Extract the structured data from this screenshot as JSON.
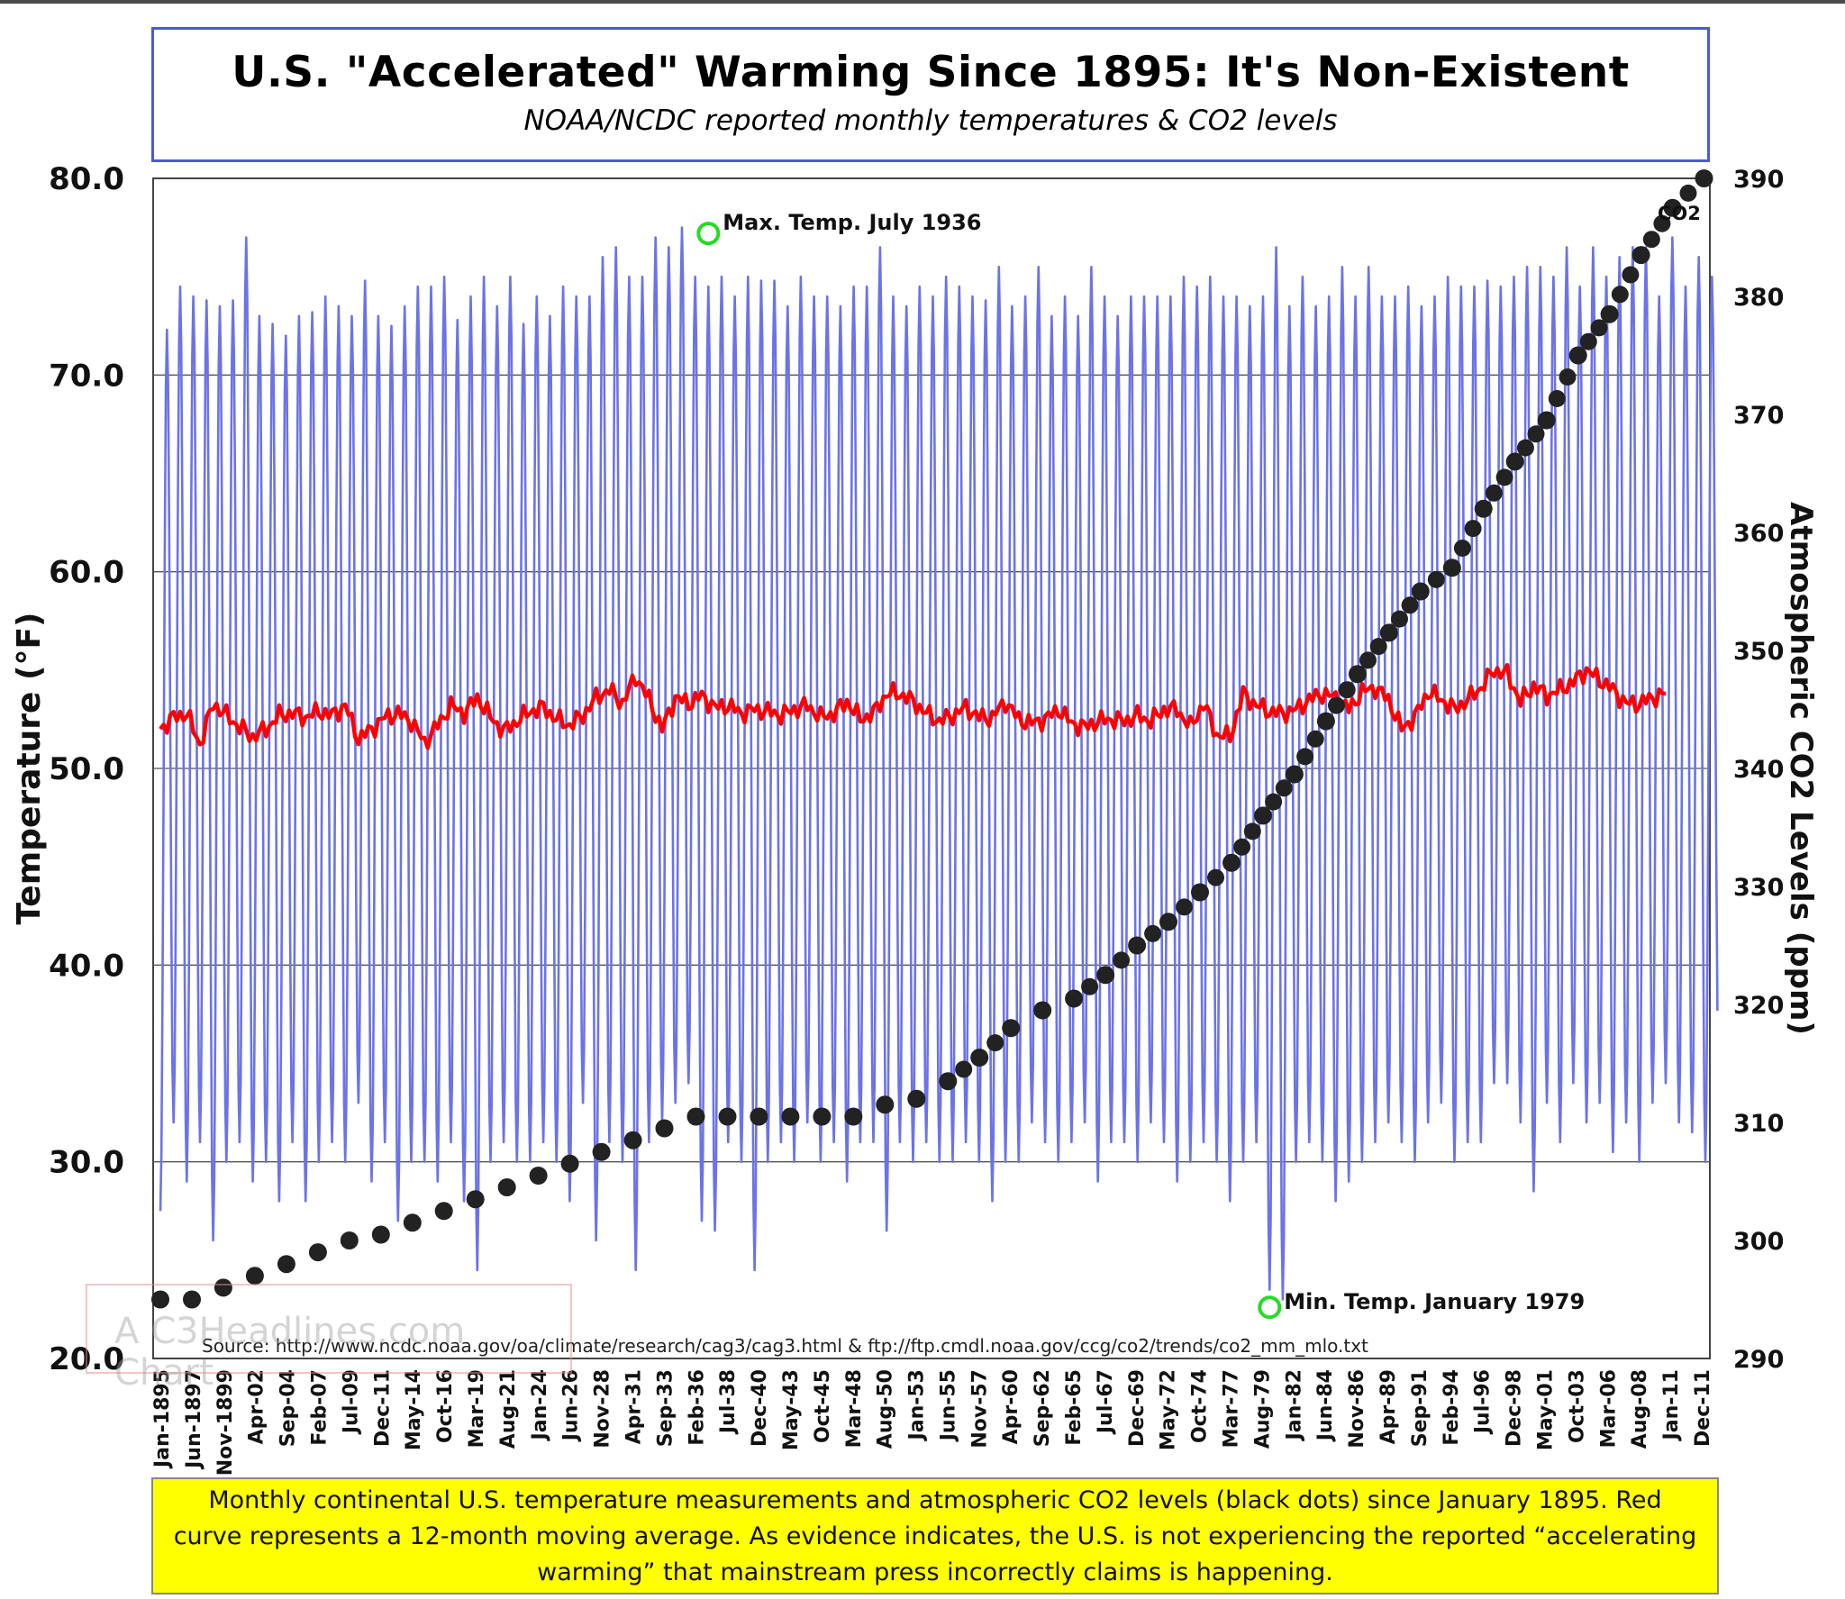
{
  "chart_data": {
    "type": "line",
    "title": "U.S. \"Accelerated\" Warming Since 1895: It's Non-Existent",
    "subtitle": "NOAA/NCDC reported monthly temperatures & CO2 levels",
    "ylabel": "Temperature (°F)",
    "y2label": "Atmospheric CO2 Levels (ppm)",
    "ylim": [
      20,
      80
    ],
    "y2lim": [
      290,
      390
    ],
    "yticks": [
      "80.0",
      "70.0",
      "60.0",
      "50.0",
      "40.0",
      "30.0",
      "20.0"
    ],
    "y2ticks": [
      "390",
      "380",
      "370",
      "360",
      "350",
      "340",
      "330",
      "320",
      "310",
      "300",
      "290"
    ],
    "xticks": [
      "Jan-1895",
      "Jun-1897",
      "Nov-1899",
      "Apr-02",
      "Sep-04",
      "Feb-07",
      "Jul-09",
      "Dec-11",
      "May-14",
      "Oct-16",
      "Mar-19",
      "Aug-21",
      "Jan-24",
      "Jun-26",
      "Nov-28",
      "Apr-31",
      "Sep-33",
      "Feb-36",
      "Jul-38",
      "Dec-40",
      "May-43",
      "Oct-45",
      "Mar-48",
      "Aug-50",
      "Jan-53",
      "Jun-55",
      "Nov-57",
      "Apr-60",
      "Sep-62",
      "Feb-65",
      "Jul-67",
      "Dec-69",
      "May-72",
      "Oct-74",
      "Mar-77",
      "Aug-79",
      "Jan-82",
      "Jun-84",
      "Nov-86",
      "Apr-89",
      "Sep-91",
      "Feb-94",
      "Jul-96",
      "Dec-98",
      "May-01",
      "Oct-03",
      "Mar-06",
      "Aug-08",
      "Jan-11",
      "Dec-11"
    ],
    "grid": true,
    "series": [
      {
        "name": "",
        "type": "line",
        "color": "#6b73e8",
        "yearly_summer_high": [
          72.3,
          74.5,
          74.0,
          73.8,
          73.5,
          73.8,
          77.0,
          73.0,
          72.6,
          72.0,
          73.0,
          73.2,
          74.0,
          73.5,
          73.0,
          74.8,
          73.0,
          72.5,
          73.5,
          74.5,
          74.5,
          75.0,
          72.8,
          74.0,
          75.0,
          73.5,
          75.0,
          72.6,
          74.0,
          73.0,
          74.5,
          74.0,
          74.0,
          76.0,
          76.5,
          75.0,
          75.0,
          77.0,
          76.5,
          77.5,
          75.0,
          74.5,
          75.0,
          74.0,
          75.0,
          74.8,
          74.8,
          73.5,
          75.0,
          74.0,
          74.0,
          73.5,
          74.5,
          74.5,
          76.5,
          74.0,
          73.5,
          74.5,
          74.0,
          75.0,
          74.5,
          74.0,
          73.8,
          75.5,
          73.5,
          74.0,
          75.5,
          73.0,
          74.0,
          73.0,
          75.5,
          74.0,
          73.0,
          74.0,
          74.0,
          74.0,
          74.0,
          75.0,
          74.5,
          75.0,
          74.0,
          74.0,
          73.5,
          74.0,
          76.5,
          73.5,
          75.0,
          73.5,
          74.0,
          75.5,
          74.0,
          75.5,
          74.0,
          74.0,
          74.5,
          73.5,
          74.0,
          75.0,
          74.5,
          74.5,
          74.8,
          74.5,
          75.0,
          75.5,
          75.5,
          75.0,
          76.5,
          74.5,
          76.5,
          75.0,
          76.0,
          76.5,
          76.5,
          74.0,
          77.0,
          74.5,
          76.0,
          75.0
        ],
        "yearly_winter_low": [
          27.5,
          32.0,
          29.0,
          31.0,
          26.0,
          30.0,
          31.0,
          29.0,
          30.0,
          28.0,
          31.0,
          28.0,
          30.0,
          31.0,
          30.0,
          33.0,
          29.0,
          31.0,
          27.0,
          30.0,
          30.0,
          29.0,
          31.0,
          28.0,
          24.5,
          30.0,
          31.0,
          30.0,
          30.0,
          31.0,
          30.0,
          28.0,
          33.0,
          26.0,
          31.0,
          30.0,
          24.5,
          31.0,
          32.0,
          33.0,
          34.0,
          27.0,
          26.5,
          31.0,
          30.0,
          24.5,
          30.0,
          31.0,
          30.0,
          32.0,
          30.0,
          31.0,
          29.0,
          31.0,
          31.0,
          26.5,
          31.0,
          30.0,
          31.0,
          30.0,
          30.0,
          31.0,
          30.0,
          28.0,
          30.0,
          30.0,
          32.0,
          31.0,
          30.0,
          31.0,
          32.0,
          29.0,
          31.0,
          31.0,
          30.0,
          32.0,
          31.0,
          29.0,
          30.0,
          31.0,
          30.0,
          28.0,
          30.0,
          31.0,
          23.5,
          23.0,
          30.0,
          31.0,
          30.0,
          28.0,
          29.0,
          30.0,
          31.0,
          32.0,
          31.0,
          30.0,
          32.0,
          33.0,
          30.0,
          31.0,
          31.0,
          34.0,
          34.0,
          32.0,
          28.5,
          33.0,
          31.0,
          34.0,
          32.0,
          33.0,
          30.5,
          32.0,
          30.0,
          33.0,
          34.0,
          32.0,
          31.5,
          30.0,
          35.0
        ]
      },
      {
        "name": "",
        "type": "line",
        "color": "#ff0000",
        "moving_average_yearly": [
          52.0,
          52.6,
          52.8,
          51.2,
          53.3,
          52.7,
          52.1,
          51.6,
          52.0,
          52.7,
          52.8,
          52.6,
          52.9,
          52.7,
          53.2,
          51.5,
          52.0,
          52.6,
          52.8,
          52.4,
          51.3,
          52.2,
          53.2,
          52.8,
          53.6,
          52.6,
          51.9,
          52.4,
          52.9,
          53.1,
          52.5,
          52.2,
          52.7,
          53.6,
          54.0,
          53.3,
          54.7,
          53.5,
          52.0,
          53.6,
          53.3,
          53.7,
          53.1,
          53.2,
          52.8,
          53.0,
          52.9,
          52.7,
          53.0,
          53.2,
          52.6,
          52.8,
          53.4,
          52.5,
          52.8,
          53.8,
          53.8,
          53.4,
          52.8,
          52.4,
          52.7,
          53.1,
          52.6,
          52.6,
          53.4,
          52.5,
          52.3,
          52.5,
          53.0,
          52.3,
          52.1,
          52.4,
          52.5,
          52.4,
          52.7,
          52.4,
          53.0,
          53.0,
          52.1,
          53.3,
          51.7,
          51.6,
          53.8,
          53.2,
          52.9,
          52.8,
          53.0,
          53.5,
          53.8,
          53.6,
          53.0,
          53.9,
          54.1,
          53.5,
          52.0,
          52.6,
          53.9,
          53.5,
          53.0,
          53.5,
          54.1,
          55.0,
          54.8,
          53.4,
          54.2,
          53.7,
          54.0,
          54.4,
          55.0,
          54.5,
          54.0,
          53.3,
          53.3,
          53.6,
          53.8
        ]
      },
      {
        "name": "CO2",
        "type": "scatter",
        "color": "#222222",
        "x": [
          "Jan-1895",
          "Jun-1897",
          "Nov-1899",
          "Apr-02",
          "Sep-04",
          "Feb-07",
          "Jul-09",
          "Dec-11",
          "May-14",
          "Oct-16",
          "Mar-19",
          "Aug-21",
          "Jan-24",
          "Jun-26",
          "Nov-28",
          "Apr-31",
          "Sep-33",
          "Feb-36",
          "Jul-38",
          "Dec-40",
          "May-43",
          "Oct-45",
          "Mar-48",
          "Aug-50",
          "Jan-53",
          "Jun-55",
          "Nov-57",
          "Apr-60",
          "Sep-62",
          "Feb-65",
          "Jul-67",
          "Dec-69",
          "May-72",
          "Oct-74",
          "Mar-77",
          "Aug-79",
          "Jan-82",
          "Jun-84",
          "Nov-86",
          "Apr-89",
          "Sep-91",
          "Feb-94",
          "Jul-96",
          "Dec-98",
          "May-01",
          "Oct-03",
          "Mar-06",
          "Aug-08",
          "Jan-11",
          "Dec-11"
        ],
        "values": [
          295.0,
          295.0,
          296.0,
          297.0,
          298.0,
          299.0,
          300.0,
          300.5,
          301.5,
          302.5,
          303.5,
          304.5,
          305.5,
          306.5,
          307.5,
          308.5,
          309.5,
          310.5,
          310.5,
          310.5,
          310.5,
          310.5,
          310.5,
          311.5,
          312.0,
          313.5,
          315.5,
          318.0,
          319.5,
          320.5,
          322.5,
          325.0,
          327.0,
          329.5,
          332.0,
          336.0,
          339.5,
          344.0,
          348.0,
          351.5,
          355.0,
          357.0,
          362.0,
          366.0,
          369.5,
          375.0,
          378.5,
          383.5,
          387.5,
          390.0
        ]
      }
    ],
    "annotations": [
      {
        "text": "Max. Temp. July 1936",
        "x_year": 1936.5,
        "y": 77.2
      },
      {
        "text": "Min. Temp. January 1979",
        "x_year": 1979.0,
        "y": 22.6
      },
      {
        "text": "CO2",
        "x_year": 2011.3,
        "y2": 391
      }
    ],
    "source": "Source: http://www.ncdc.noaa.gov/oa/climate/research/cag3/cag3.html  &  ftp://ftp.cmdl.noaa.gov/ccg/co2/trends/co2_mm_mlo.txt",
    "watermark": "A C3Headlines.com Chart",
    "colors": {
      "temperature": "#6b73e8",
      "moving_average": "#ff0000",
      "co2": "#222222",
      "highlight": "#22dd22",
      "caption_bg": "#ffff00"
    }
  },
  "caption": "Monthly continental U.S. temperature measurements and atmospheric CO2 levels (black dots) since January 1895. Red curve represents a 12-month moving average. As evidence indicates, the U.S. is not experiencing the reported “accelerating warming” that mainstream press incorrectly claims is happening."
}
